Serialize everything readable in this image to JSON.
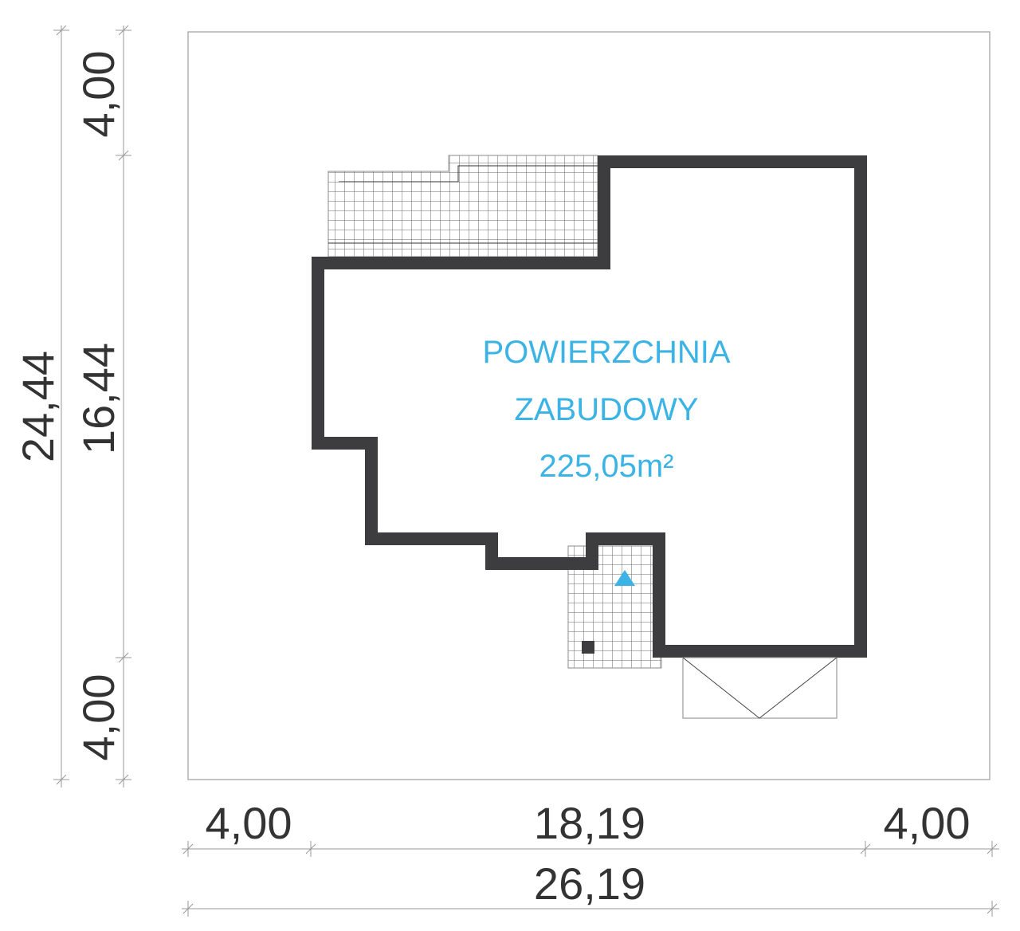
{
  "label": {
    "line1": "POWIERZCHNIA",
    "line2": "ZABUDOWY",
    "area": "225,05m²"
  },
  "dimensions": {
    "vertical_total": "24,44",
    "vertical_top": "4,00",
    "vertical_middle": "16,44",
    "vertical_bottom": "4,00",
    "horizontal_left": "4,00",
    "horizontal_middle": "18,19",
    "horizontal_right": "4,00",
    "horizontal_total": "26,19"
  },
  "colors": {
    "wall": "#3d3d3f",
    "label": "#3bb4e5",
    "dimension": "#333333",
    "plot_border": "#b0b0b0"
  },
  "icons": {
    "entrance_marker": "triangle",
    "chimney": "square"
  }
}
